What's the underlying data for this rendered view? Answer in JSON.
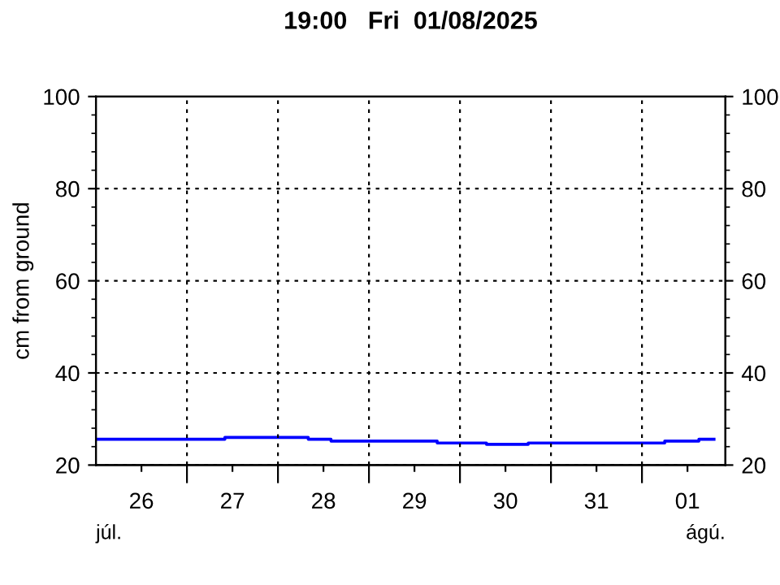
{
  "chart_data": {
    "type": "step",
    "title": "19:00   Fri  01/08/2025",
    "ylabel": "cm from ground",
    "annotations": [
      "júl.",
      "ágú."
    ],
    "x": [
      "2025-07-26T00:00",
      "2025-07-27T10:00",
      "2025-07-28T08:00",
      "2025-07-28T14:00",
      "2025-07-29T18:00",
      "2025-07-30T07:00",
      "2025-07-30T18:00",
      "2025-08-01T06:00",
      "2025-08-01T15:00",
      "2025-08-01T19:00"
    ],
    "series": [
      {
        "color": "#0000ff",
        "values": [
          25.6,
          26.0,
          25.6,
          25.2,
          24.8,
          24.5,
          24.8,
          25.2,
          25.6,
          25.6
        ]
      }
    ],
    "xlim": [
      "2025-07-26T00:00",
      "2025-08-01T22:00"
    ],
    "xticks": [
      {
        "value": "2025-07-26T12:00",
        "label": "26"
      },
      {
        "value": "2025-07-27T00:00",
        "label": null
      },
      {
        "value": "2025-07-27T12:00",
        "label": "27"
      },
      {
        "value": "2025-07-28T00:00",
        "label": null
      },
      {
        "value": "2025-07-28T12:00",
        "label": "28"
      },
      {
        "value": "2025-07-29T00:00",
        "label": null
      },
      {
        "value": "2025-07-29T12:00",
        "label": "29"
      },
      {
        "value": "2025-07-30T00:00",
        "label": null
      },
      {
        "value": "2025-07-30T12:00",
        "label": "30"
      },
      {
        "value": "2025-07-31T00:00",
        "label": null
      },
      {
        "value": "2025-07-31T12:00",
        "label": "31"
      },
      {
        "value": "2025-08-01T00:00",
        "label": null
      },
      {
        "value": "2025-08-01T12:00",
        "label": "01"
      }
    ],
    "ylim": [
      20,
      100
    ],
    "yticks": [
      20,
      40,
      60,
      80,
      100
    ],
    "y2lim": [
      20,
      100
    ],
    "y2ticks": [
      20,
      40,
      60,
      80,
      100
    ],
    "grid": true,
    "line_style": "solid",
    "marker": "none",
    "legend": false
  }
}
